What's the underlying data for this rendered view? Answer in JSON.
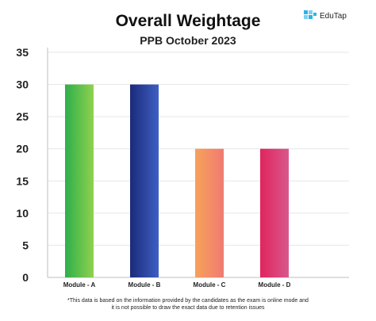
{
  "chart_data": {
    "type": "bar",
    "title": "Overall Weightage",
    "subtitle": "PPB October 2023",
    "categories": [
      "Module - A",
      "Module - B",
      "Module - C",
      "Module - D"
    ],
    "values": [
      30,
      30,
      20,
      20
    ],
    "ylim": [
      0,
      35
    ],
    "yticks": [
      0,
      5,
      10,
      15,
      20,
      25,
      30,
      35
    ],
    "grid": true,
    "colors": [
      [
        "#2eaf4a",
        "#8fd14f"
      ],
      [
        "#1b2a7a",
        "#3e5fc4"
      ],
      [
        "#f7a25a",
        "#f07a72"
      ],
      [
        "#e0245e",
        "#d8588c"
      ]
    ]
  },
  "logo": {
    "text": "EduTap",
    "color": "#2bb3e6"
  },
  "footnote": {
    "line1": "*This data is based on the information provided by the candidates as the exam is online mode and",
    "line2": "it is not possible to draw the exact data due to retention issues"
  }
}
